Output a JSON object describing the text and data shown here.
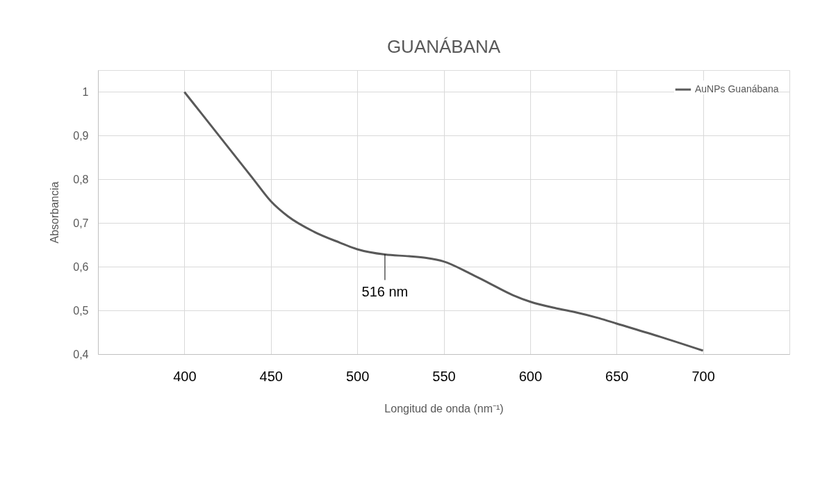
{
  "chart_data": {
    "type": "line",
    "title": "GUANÁBANA",
    "xlabel": "Longitud de onda (nm⁻¹)",
    "ylabel": "Absorbancia",
    "x": [
      400,
      410,
      420,
      430,
      440,
      450,
      460,
      475,
      490,
      500,
      516,
      530,
      540,
      550,
      565,
      575,
      590,
      600,
      615,
      625,
      640,
      650,
      675,
      700
    ],
    "series": [
      {
        "name": "AuNPs Guanábana",
        "color": "#595959",
        "values": [
          1.0,
          0.95,
          0.9,
          0.85,
          0.8,
          0.75,
          0.715,
          0.68,
          0.655,
          0.64,
          0.628,
          0.624,
          0.62,
          0.612,
          0.585,
          0.565,
          0.535,
          0.52,
          0.505,
          0.497,
          0.482,
          0.47,
          0.44,
          0.408
        ]
      }
    ],
    "xlim": [
      350,
      750
    ],
    "xticks": [
      {
        "value": 350,
        "label": null
      },
      400,
      450,
      500,
      550,
      600,
      650,
      700,
      {
        "value": 750,
        "label": null
      }
    ],
    "ylim": [
      0.4,
      1.05
    ],
    "yticks": [
      {
        "value": 0.4,
        "label": "0,4"
      },
      {
        "value": 0.5,
        "label": "0,5"
      },
      {
        "value": 0.6,
        "label": "0,6"
      },
      {
        "value": 0.7,
        "label": "0,7"
      },
      {
        "value": 0.8,
        "label": "0,8"
      },
      {
        "value": 0.9,
        "label": "0,9"
      },
      {
        "value": 1,
        "label": "1"
      }
    ],
    "annotations": [
      {
        "text": "516 nm",
        "x": 516,
        "y": 0.628
      }
    ],
    "grid": true,
    "legend": "top right",
    "marker": "none",
    "line_style": "solid"
  }
}
